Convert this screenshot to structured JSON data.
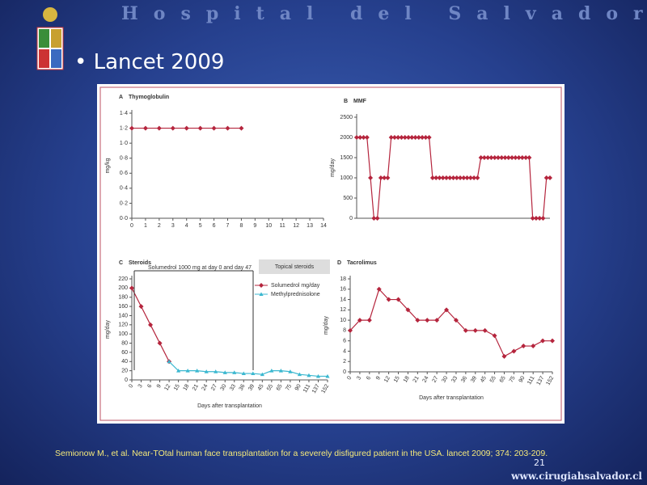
{
  "slide": {
    "header": "Hospital del Salvador",
    "bullet": "Lancet 2009",
    "citation": "Semionow M., et al. Near-TOtal human face transplantation for a severely disfigured patient in the USA. lancet 2009; 374: 203-209.",
    "page_number": "21",
    "url": "www.cirugiahsalvador.cl"
  },
  "chart_data": [
    {
      "type": "line",
      "panel": "A",
      "title": "Thymoglobulin",
      "y_label": "mg/kg",
      "x": [
        0,
        1,
        2,
        3,
        4,
        5,
        6,
        7,
        8
      ],
      "xlim": [
        0,
        14
      ],
      "xticks": [
        0,
        1,
        2,
        3,
        4,
        5,
        6,
        7,
        8,
        9,
        10,
        11,
        12,
        13,
        14
      ],
      "ylim": [
        0,
        1.4
      ],
      "yticks": [
        {
          "value": 0,
          "label": "0·0"
        },
        {
          "value": 0.2,
          "label": "0·2"
        },
        {
          "value": 0.4,
          "label": "0·4"
        },
        {
          "value": 0.6,
          "label": "0·6"
        },
        {
          "value": 0.8,
          "label": "0·8"
        },
        {
          "value": 1,
          "label": "1·0"
        },
        {
          "value": 1.2,
          "label": "1·2"
        },
        {
          "value": 1.4,
          "label": "1·4"
        }
      ],
      "series": [
        {
          "color": "#b5253d",
          "marker": "diamond",
          "values": [
            1.2,
            1.2,
            1.2,
            1.2,
            1.2,
            1.2,
            1.2,
            1.2,
            1.2
          ]
        }
      ]
    },
    {
      "type": "line",
      "panel": "B",
      "title": "MMF",
      "y_label": "mg/day",
      "ylim": [
        0,
        2500
      ],
      "yticks": [
        0,
        500,
        1000,
        1500,
        2000,
        2500
      ],
      "series": [
        {
          "color": "#b5253d",
          "marker": "diamond",
          "values": [
            2000,
            2000,
            2000,
            2000,
            1000,
            0,
            0,
            1000,
            1000,
            1000,
            2000,
            2000,
            2000,
            2000,
            2000,
            2000,
            2000,
            2000,
            2000,
            2000,
            2000,
            2000,
            1000,
            1000,
            1000,
            1000,
            1000,
            1000,
            1000,
            1000,
            1000,
            1000,
            1000,
            1000,
            1000,
            1000,
            1500,
            1500,
            1500,
            1500,
            1500,
            1500,
            1500,
            1500,
            1500,
            1500,
            1500,
            1500,
            1500,
            1500,
            1500,
            0,
            0,
            0,
            0,
            1000,
            1000
          ]
        }
      ]
    },
    {
      "type": "line",
      "panel": "C",
      "title": "Steroids",
      "y_label": "mg/day",
      "x_label": "Days after transplantation",
      "annotations": [
        "Solumedrol 1000 mg at day 0 and day 47",
        "Topical steroids"
      ],
      "legend": "upper right",
      "categories": [
        "0",
        "3",
        "6",
        "9",
        "12",
        "15",
        "18",
        "21",
        "24",
        "27",
        "30",
        "33",
        "36",
        "39",
        "45",
        "55",
        "65",
        "75",
        "90",
        "111",
        "137",
        "152"
      ],
      "ylim": [
        0,
        220
      ],
      "yticks": [
        0,
        20,
        40,
        60,
        80,
        100,
        120,
        140,
        160,
        180,
        200,
        220
      ],
      "series": [
        {
          "name": "Solumedrol mg/day",
          "color": "#b5253d",
          "marker": "diamond",
          "values": [
            200,
            160,
            120,
            80,
            40,
            null,
            null,
            null,
            null,
            null,
            null,
            null,
            null,
            null,
            null,
            null,
            null,
            null,
            null,
            null,
            null,
            null
          ]
        },
        {
          "name": "Methylprednisolone",
          "color": "#3bb8d0",
          "marker": "triangle",
          "values": [
            null,
            null,
            null,
            null,
            40,
            20,
            20,
            20,
            18,
            18,
            16,
            16,
            14,
            14,
            12,
            20,
            20,
            18,
            12,
            10,
            8,
            8
          ]
        }
      ]
    },
    {
      "type": "line",
      "panel": "D",
      "title": "Tacrolimus",
      "y_label": "mg/day",
      "x_label": "Days after transplantation",
      "categories": [
        "0",
        "3",
        "6",
        "9",
        "12",
        "15",
        "18",
        "21",
        "24",
        "27",
        "30",
        "33",
        "36",
        "39",
        "45",
        "55",
        "65",
        "75",
        "90",
        "111",
        "137",
        "152"
      ],
      "ylim": [
        0,
        18
      ],
      "yticks": [
        0,
        2,
        4,
        6,
        8,
        10,
        12,
        14,
        16,
        18
      ],
      "series": [
        {
          "color": "#b5253d",
          "marker": "diamond",
          "values": [
            8,
            10,
            10,
            16,
            14,
            14,
            12,
            10,
            10,
            10,
            12,
            10,
            8,
            8,
            8,
            7,
            3,
            4,
            5,
            5,
            6,
            6
          ]
        }
      ]
    }
  ]
}
